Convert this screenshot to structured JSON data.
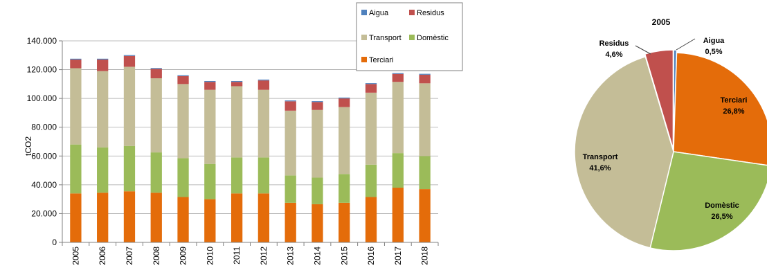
{
  "chart_data": [
    {
      "type": "bar",
      "stacked": true,
      "title": "",
      "xlabel": "",
      "ylabel": "tCO2",
      "ylim": [
        0,
        140000
      ],
      "yticks": [
        "0",
        "20.000",
        "40.000",
        "60.000",
        "80.000",
        "100.000",
        "120.000",
        "140.000"
      ],
      "grid": true,
      "legend_position": "top-right",
      "categories": [
        "2005",
        "2006",
        "2007",
        "2008",
        "2009",
        "2010",
        "2011",
        "2012",
        "2013",
        "2014",
        "2015",
        "2016",
        "2017",
        "2018"
      ],
      "series": [
        {
          "name": "Terciari",
          "color": "#E46C0A",
          "values": [
            34000,
            34500,
            35500,
            34500,
            31500,
            30000,
            34000,
            34000,
            27500,
            26500,
            27500,
            31500,
            38000,
            37000
          ]
        },
        {
          "name": "Domèstic",
          "color": "#9BBB59",
          "values": [
            34000,
            31500,
            31500,
            28000,
            27000,
            24500,
            25000,
            25000,
            19000,
            18500,
            20000,
            22500,
            24000,
            23000
          ]
        },
        {
          "name": "Transport",
          "color": "#C4BD97",
          "values": [
            53000,
            53000,
            55000,
            51500,
            51500,
            51500,
            49500,
            47000,
            45000,
            47000,
            46500,
            50000,
            49500,
            50500
          ]
        },
        {
          "name": "Residus",
          "color": "#C0504D",
          "values": [
            6000,
            8000,
            7500,
            6500,
            5500,
            5500,
            3000,
            6500,
            6500,
            5500,
            6000,
            6000,
            5500,
            6000
          ]
        },
        {
          "name": "Aigua",
          "color": "#4F81BD",
          "values": [
            600,
            600,
            600,
            600,
            600,
            600,
            600,
            600,
            600,
            600,
            600,
            600,
            600,
            600
          ]
        }
      ],
      "legend_items": [
        "Aigua",
        "Residus",
        "Transport",
        "Domèstic",
        "Terciari"
      ]
    },
    {
      "type": "pie",
      "title": "2005",
      "slices": [
        {
          "name": "Aigua",
          "label": "Aigua",
          "value_label": "0,5%",
          "value": 0.5,
          "color": "#4F81BD"
        },
        {
          "name": "Terciari",
          "label": "Terciari",
          "value_label": "26,8%",
          "value": 26.8,
          "color": "#E46C0A"
        },
        {
          "name": "Domèstic",
          "label": "Domèstic",
          "value_label": "26,5%",
          "value": 26.5,
          "color": "#9BBB59"
        },
        {
          "name": "Transport",
          "label": "Transport",
          "value_label": "41,6%",
          "value": 41.6,
          "color": "#C4BD97"
        },
        {
          "name": "Residus",
          "label": "Residus",
          "value_label": "4,6%",
          "value": 4.6,
          "color": "#C0504D"
        }
      ]
    }
  ]
}
